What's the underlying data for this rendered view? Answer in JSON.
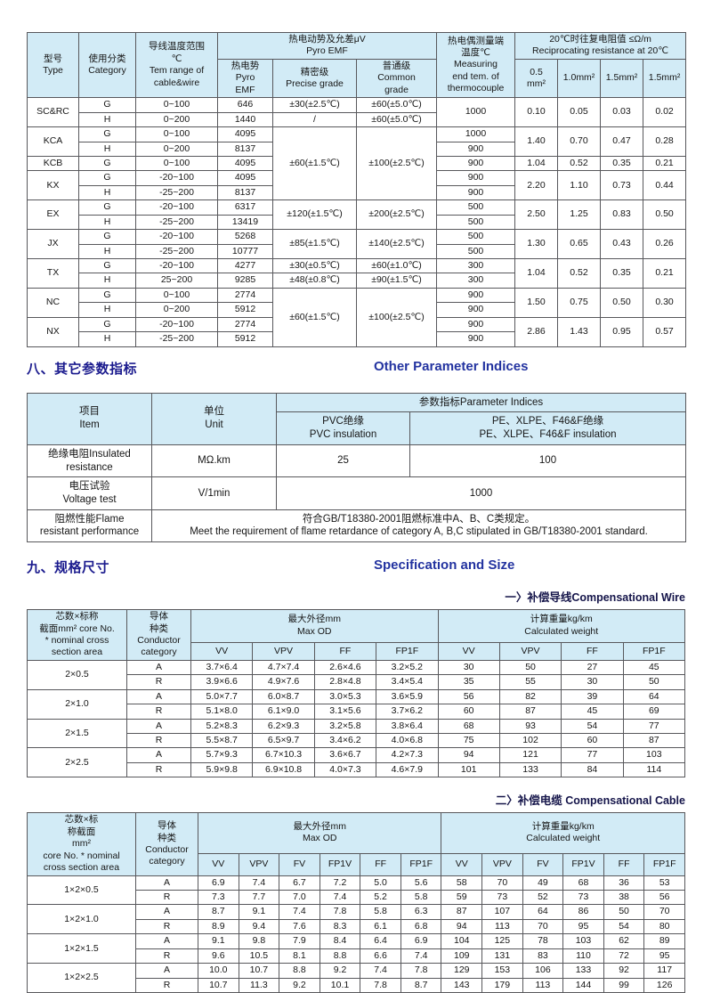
{
  "page": {
    "header_bg": "#d2ebf6",
    "border_color": "#58585c",
    "heading_zh_color": "#1b1b8e",
    "heading_en_color": "#2333a0"
  },
  "sections": {
    "other_params": {
      "zh": "八、其它参数指标",
      "en": "Other Parameter Indices"
    },
    "spec_size": {
      "zh": "九、规格尺寸",
      "en": "Specification and Size"
    },
    "wire_sub": "一〉补偿导线Compensational Wire",
    "cable_sub": "二〉补偿电缆 Compensational Cable"
  },
  "tables": {
    "emf": {
      "rows": [
        [
          {
            "t": "型号\nType",
            "rs": 2,
            "h": 1
          },
          {
            "t": "使用分类\nCategory",
            "rs": 2,
            "h": 1
          },
          {
            "t": "导线温度范围\n℃\nTem range of\ncable&wire",
            "rs": 2,
            "h": 1
          },
          {
            "t": "热电动势及允差μV\nPyro EMF",
            "cs": 3,
            "h": 1
          },
          {
            "t": "热电偶测量端\n温度℃\nMeasuring\nend tem. of\nthermocouple",
            "rs": 2,
            "h": 1
          },
          {
            "t": "20℃时往复电阻值 ≤Ω/m\nReciprocating resistance at 20℃",
            "cs": 4,
            "h": 1
          }
        ],
        [
          {
            "t": "热电势\nPyro\nEMF",
            "h": 1
          },
          {
            "t": "精密级\nPrecise grade",
            "h": 1
          },
          {
            "t": "普通级\nCommon\ngrade",
            "h": 1
          },
          {
            "t": "0.5\nmm²",
            "h": 1
          },
          {
            "t": "1.0mm²",
            "h": 1
          },
          {
            "t": "1.5mm²",
            "h": 1
          },
          {
            "t": "1.5mm²",
            "h": 1
          }
        ],
        [
          {
            "t": "SC&RC",
            "rs": 2
          },
          "G",
          "0~100",
          "646",
          "±30(±2.5℃)",
          "±60(±5.0℃)",
          {
            "t": "1000",
            "rs": 2
          },
          {
            "t": "0.10",
            "rs": 2
          },
          {
            "t": "0.05",
            "rs": 2
          },
          {
            "t": "0.03",
            "rs": 2
          },
          {
            "t": "0.02",
            "rs": 2
          }
        ],
        [
          "H",
          "0~200",
          "1440",
          "/",
          "±60(±5.0℃)"
        ],
        [
          {
            "t": "KCA",
            "rs": 2
          },
          "G",
          "0~100",
          "4095",
          {
            "t": "±60(±1.5℃)",
            "rs": 5
          },
          {
            "t": "±100(±2.5℃)",
            "rs": 5
          },
          "1000",
          {
            "t": "1.40",
            "rs": 2
          },
          {
            "t": "0.70",
            "rs": 2
          },
          {
            "t": "0.47",
            "rs": 2
          },
          {
            "t": "0.28",
            "rs": 2
          }
        ],
        [
          "H",
          "0~200",
          "8137",
          "900"
        ],
        [
          "KCB",
          "G",
          "0~100",
          "4095",
          "900",
          "1.04",
          "0.52",
          "0.35",
          "0.21"
        ],
        [
          {
            "t": "KX",
            "rs": 2
          },
          "G",
          "-20~100",
          "4095",
          "900",
          {
            "t": "2.20",
            "rs": 2
          },
          {
            "t": "1.10",
            "rs": 2
          },
          {
            "t": "0.73",
            "rs": 2
          },
          {
            "t": "0.44",
            "rs": 2
          }
        ],
        [
          "H",
          "-25~200",
          "8137",
          "900"
        ],
        [
          {
            "t": "EX",
            "rs": 2
          },
          "G",
          "-20~100",
          "6317",
          {
            "t": "±120(±1.5℃)",
            "rs": 2
          },
          {
            "t": "±200(±2.5℃)",
            "rs": 2
          },
          "500",
          {
            "t": "2.50",
            "rs": 2
          },
          {
            "t": "1.25",
            "rs": 2
          },
          {
            "t": "0.83",
            "rs": 2
          },
          {
            "t": "0.50",
            "rs": 2
          }
        ],
        [
          "H",
          "-25~200",
          "13419",
          "500"
        ],
        [
          {
            "t": "JX",
            "rs": 2
          },
          "G",
          "-20~100",
          "5268",
          {
            "t": "±85(±1.5℃)",
            "rs": 2
          },
          {
            "t": "±140(±2.5℃)",
            "rs": 2
          },
          "500",
          {
            "t": "1.30",
            "rs": 2
          },
          {
            "t": "0.65",
            "rs": 2
          },
          {
            "t": "0.43",
            "rs": 2
          },
          {
            "t": "0.26",
            "rs": 2
          }
        ],
        [
          "H",
          "-25~200",
          "10777",
          "500"
        ],
        [
          {
            "t": "TX",
            "rs": 2
          },
          "G",
          "-20~100",
          "4277",
          "±30(±0.5℃)",
          "±60(±1.0℃)",
          "300",
          {
            "t": "1.04",
            "rs": 2
          },
          {
            "t": "0.52",
            "rs": 2
          },
          {
            "t": "0.35",
            "rs": 2
          },
          {
            "t": "0.21",
            "rs": 2
          }
        ],
        [
          "H",
          "25~200",
          "9285",
          "±48(±0.8℃)",
          "±90(±1.5℃)",
          "300"
        ],
        [
          {
            "t": "NC",
            "rs": 2
          },
          "G",
          "0~100",
          "2774",
          {
            "t": "±60(±1.5℃)",
            "rs": 4
          },
          {
            "t": "±100(±2.5℃)",
            "rs": 4
          },
          "900",
          {
            "t": "1.50",
            "rs": 2
          },
          {
            "t": "0.75",
            "rs": 2
          },
          {
            "t": "0.50",
            "rs": 2
          },
          {
            "t": "0.30",
            "rs": 2
          }
        ],
        [
          "H",
          "0~200",
          "5912",
          "900"
        ],
        [
          {
            "t": "NX",
            "rs": 2
          },
          "G",
          "-20~100",
          "2774",
          "900",
          {
            "t": "2.86",
            "rs": 2
          },
          {
            "t": "1.43",
            "rs": 2
          },
          {
            "t": "0.95",
            "rs": 2
          },
          {
            "t": "0.57",
            "rs": 2
          }
        ],
        [
          "H",
          "-25~200",
          "5912",
          "900"
        ]
      ]
    },
    "params": {
      "rows": [
        [
          {
            "t": "项目\nItem",
            "rs": 2,
            "h": 1
          },
          {
            "t": "单位\nUnit",
            "rs": 2,
            "h": 1
          },
          {
            "t": "参数指标Parameter Indices",
            "cs": 2,
            "h": 1
          }
        ],
        [
          {
            "t": "PVC绝缘\nPVC insulation",
            "h": 1
          },
          {
            "t": "PE、XLPE、F46&F绝缘\nPE、XLPE、F46&F insulation",
            "h": 1
          }
        ],
        [
          "绝缘电阻Insulated\nresistance",
          "MΩ.km",
          "25",
          "100"
        ],
        [
          "电压试验\nVoltage test",
          "V/1min",
          {
            "t": "1000",
            "cs": 2
          }
        ],
        [
          "阻燃性能Flame\nresistant performance",
          {
            "t": "符合GB/T18380-2001阻燃标准中A、B、C类规定。\nMeet the requirement of flame retardance of category A, B,C stipulated in GB/T18380-2001 standard.",
            "cs": 3
          }
        ]
      ]
    },
    "wire": {
      "rows": [
        [
          {
            "t": "芯数×标称\n截面mm² core No.\n* nominal cross\nsection area",
            "rs": 2,
            "h": 1
          },
          {
            "t": "导体\n种类\nConductor\ncategory",
            "rs": 2,
            "h": 1
          },
          {
            "t": "最大外径mm\nMax OD",
            "cs": 4,
            "h": 1
          },
          {
            "t": "计算重量kg/km\nCalculated weight",
            "cs": 4,
            "h": 1
          }
        ],
        [
          {
            "t": "VV",
            "h": 1
          },
          {
            "t": "VPV",
            "h": 1
          },
          {
            "t": "FF",
            "h": 1
          },
          {
            "t": "FP1F",
            "h": 1
          },
          {
            "t": "VV",
            "h": 1
          },
          {
            "t": "VPV",
            "h": 1
          },
          {
            "t": "FF",
            "h": 1
          },
          {
            "t": "FP1F",
            "h": 1
          }
        ],
        [
          {
            "t": "2×0.5",
            "rs": 2
          },
          "A",
          "3.7×6.4",
          "4.7×7.4",
          "2.6×4.6",
          "3.2×5.2",
          "30",
          "50",
          "27",
          "45"
        ],
        [
          "R",
          "3.9×6.6",
          "4.9×7.6",
          "2.8×4.8",
          "3.4×5.4",
          "35",
          "55",
          "30",
          "50"
        ],
        [
          {
            "t": "2×1.0",
            "rs": 2
          },
          "A",
          "5.0×7.7",
          "6.0×8.7",
          "3.0×5.3",
          "3.6×5.9",
          "56",
          "82",
          "39",
          "64"
        ],
        [
          "R",
          "5.1×8.0",
          "6.1×9.0",
          "3.1×5.6",
          "3.7×6.2",
          "60",
          "87",
          "45",
          "69"
        ],
        [
          {
            "t": "2×1.5",
            "rs": 2
          },
          "A",
          "5.2×8.3",
          "6.2×9.3",
          "3.2×5.8",
          "3.8×6.4",
          "68",
          "93",
          "54",
          "77"
        ],
        [
          "R",
          "5.5×8.7",
          "6.5×9.7",
          "3.4×6.2",
          "4.0×6.8",
          "75",
          "102",
          "60",
          "87"
        ],
        [
          {
            "t": "2×2.5",
            "rs": 2
          },
          "A",
          "5.7×9.3",
          "6.7×10.3",
          "3.6×6.7",
          "4.2×7.3",
          "94",
          "121",
          "77",
          "103"
        ],
        [
          "R",
          "5.9×9.8",
          "6.9×10.8",
          "4.0×7.3",
          "4.6×7.9",
          "101",
          "133",
          "84",
          "114"
        ]
      ]
    },
    "cable": {
      "rows": [
        [
          {
            "t": "芯数×标\n称截面\nmm²\ncore No. * nominal\ncross section area",
            "rs": 2,
            "h": 1
          },
          {
            "t": "导体\n种类\nConductor\ncategory",
            "rs": 2,
            "h": 1
          },
          {
            "t": "最大外径mm\nMax OD",
            "cs": 6,
            "h": 1
          },
          {
            "t": "计算重量kg/km\nCalculated weight",
            "cs": 6,
            "h": 1
          }
        ],
        [
          {
            "t": "VV",
            "h": 1
          },
          {
            "t": "VPV",
            "h": 1
          },
          {
            "t": "FV",
            "h": 1
          },
          {
            "t": "FP1V",
            "h": 1
          },
          {
            "t": "FF",
            "h": 1
          },
          {
            "t": "FP1F",
            "h": 1
          },
          {
            "t": "VV",
            "h": 1
          },
          {
            "t": "VPV",
            "h": 1
          },
          {
            "t": "FV",
            "h": 1
          },
          {
            "t": "FP1V",
            "h": 1
          },
          {
            "t": "FF",
            "h": 1
          },
          {
            "t": "FP1F",
            "h": 1
          }
        ],
        [
          {
            "t": "1×2×0.5",
            "rs": 2
          },
          "A",
          "6.9",
          "7.4",
          "6.7",
          "7.2",
          "5.0",
          "5.6",
          "58",
          "70",
          "49",
          "68",
          "36",
          "53"
        ],
        [
          "R",
          "7.3",
          "7.7",
          "7.0",
          "7.4",
          "5.2",
          "5.8",
          "59",
          "73",
          "52",
          "73",
          "38",
          "56"
        ],
        [
          {
            "t": "1×2×1.0",
            "rs": 2
          },
          "A",
          "8.7",
          "9.1",
          "7.4",
          "7.8",
          "5.8",
          "6.3",
          "87",
          "107",
          "64",
          "86",
          "50",
          "70"
        ],
        [
          "R",
          "8.9",
          "9.4",
          "7.6",
          "8.3",
          "6.1",
          "6.8",
          "94",
          "113",
          "70",
          "95",
          "54",
          "80"
        ],
        [
          {
            "t": "1×2×1.5",
            "rs": 2
          },
          "A",
          "9.1",
          "9.8",
          "7.9",
          "8.4",
          "6.4",
          "6.9",
          "104",
          "125",
          "78",
          "103",
          "62",
          "89"
        ],
        [
          "R",
          "9.6",
          "10.5",
          "8.1",
          "8.8",
          "6.6",
          "7.4",
          "109",
          "131",
          "83",
          "110",
          "72",
          "95"
        ],
        [
          {
            "t": "1×2×2.5",
            "rs": 2
          },
          "A",
          "10.0",
          "10.7",
          "8.8",
          "9.2",
          "7.4",
          "7.8",
          "129",
          "153",
          "106",
          "133",
          "92",
          "117"
        ],
        [
          "R",
          "10.7",
          "11.3",
          "9.2",
          "10.1",
          "7.8",
          "8.7",
          "143",
          "179",
          "113",
          "144",
          "99",
          "126"
        ]
      ]
    }
  }
}
